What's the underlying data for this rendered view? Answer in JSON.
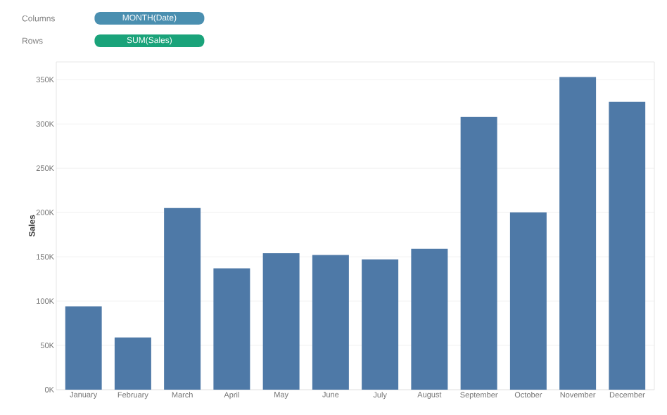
{
  "chart_data": {
    "type": "bar",
    "ylabel": "Sales",
    "annotations": [
      "Columns",
      "MONTH(Date)",
      "Rows",
      "SUM(Sales)"
    ],
    "categories": [
      "January",
      "February",
      "March",
      "April",
      "May",
      "June",
      "July",
      "August",
      "September",
      "October",
      "November",
      "December"
    ],
    "values": [
      94000,
      59000,
      205000,
      137000,
      154000,
      152000,
      147000,
      159000,
      308000,
      200000,
      353000,
      325000
    ],
    "color": "#4e79a7",
    "ylim": [
      0,
      370000
    ],
    "yticks": [
      {
        "value": 0,
        "label": "0K"
      },
      {
        "value": 50000,
        "label": "50K"
      },
      {
        "value": 100000,
        "label": "100K"
      },
      {
        "value": 150000,
        "label": "150K"
      },
      {
        "value": 200000,
        "label": "200K"
      },
      {
        "value": 250000,
        "label": "250K"
      },
      {
        "value": 300000,
        "label": "300K"
      },
      {
        "value": 350000,
        "label": "350K"
      }
    ],
    "grid": "y"
  }
}
